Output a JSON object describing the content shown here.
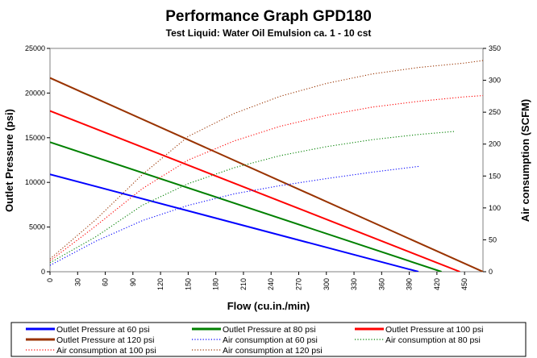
{
  "chart_data": {
    "type": "line",
    "title": "Performance Graph GPD180",
    "subtitle": "Test Liquid: Water Oil Emulsion ca. 1 - 10 cst",
    "xlabel": "Flow (cu.in./min)",
    "ylabel": "Outlet Pressure (psi)",
    "y2label": "Air consumption (SCFM)",
    "xlim": [
      0,
      470
    ],
    "ylim": [
      0,
      25000
    ],
    "y2lim": [
      0,
      350
    ],
    "x_ticks": [
      "0",
      "30",
      "60",
      "90",
      "120",
      "150",
      "180",
      "210",
      "240",
      "270",
      "300",
      "330",
      "360",
      "390",
      "420",
      "450"
    ],
    "y_ticks": [
      "0",
      "5000",
      "10000",
      "15000",
      "20000",
      "25000"
    ],
    "y2_ticks": [
      "0",
      "50",
      "100",
      "150",
      "200",
      "250",
      "300",
      "350"
    ],
    "grid": false,
    "legend_position": "bottom",
    "series": [
      {
        "name": "Outlet Pressure at 60 psi",
        "axis": "left",
        "style": "solid",
        "color": "#0000ff",
        "x": [
          0,
          400
        ],
        "y": [
          10900,
          0
        ]
      },
      {
        "name": "Outlet Pressure at 80 psi",
        "axis": "left",
        "style": "solid",
        "color": "#008000",
        "x": [
          0,
          425
        ],
        "y": [
          14500,
          0
        ]
      },
      {
        "name": "Outlet Pressure at 100 psi",
        "axis": "left",
        "style": "solid",
        "color": "#ff0000",
        "x": [
          0,
          445
        ],
        "y": [
          18000,
          0
        ]
      },
      {
        "name": "Outlet Pressure at 120 psi",
        "axis": "left",
        "style": "solid",
        "color": "#993300",
        "x": [
          0,
          470
        ],
        "y": [
          21700,
          0
        ]
      },
      {
        "name": "Air consumption at 60 psi",
        "axis": "right",
        "style": "dotted",
        "color": "#0000ff",
        "x": [
          0,
          50,
          100,
          150,
          200,
          250,
          300,
          350,
          400
        ],
        "y": [
          10,
          48,
          80,
          104,
          122,
          135,
          146,
          156,
          165
        ]
      },
      {
        "name": "Air consumption at 80 psi",
        "axis": "right",
        "style": "dotted",
        "color": "#008000",
        "x": [
          0,
          50,
          100,
          150,
          200,
          250,
          300,
          350,
          400,
          440
        ],
        "y": [
          14,
          55,
          104,
          138,
          163,
          182,
          196,
          207,
          215,
          220
        ]
      },
      {
        "name": "Air consumption at 100 psi",
        "axis": "right",
        "style": "dotted",
        "color": "#ff0000",
        "x": [
          0,
          50,
          100,
          150,
          200,
          250,
          300,
          350,
          400,
          450,
          480
        ],
        "y": [
          17,
          72,
          130,
          175,
          205,
          228,
          245,
          258,
          267,
          274,
          277
        ]
      },
      {
        "name": "Air consumption at 120 psi",
        "axis": "right",
        "style": "dotted",
        "color": "#993300",
        "x": [
          0,
          50,
          100,
          150,
          200,
          250,
          300,
          350,
          400,
          450,
          480
        ],
        "y": [
          20,
          82,
          152,
          212,
          248,
          275,
          295,
          310,
          320,
          327,
          333
        ]
      }
    ]
  }
}
